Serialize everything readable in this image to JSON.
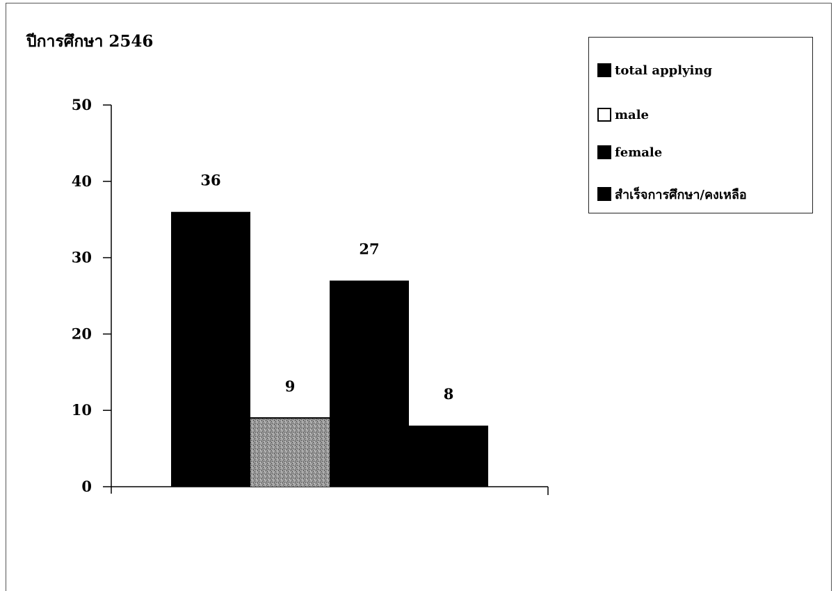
{
  "chart_data": {
    "type": "bar",
    "title": "ปีการศึกษา 2546",
    "xlabel": "",
    "ylabel": "",
    "ylim": [
      0,
      50
    ],
    "yticks": [
      0,
      10,
      20,
      30,
      40,
      50
    ],
    "grid": false,
    "legend_position": "top-right",
    "series": [
      {
        "name": "total applying",
        "value": 36,
        "label": "36",
        "fill": "solid-black"
      },
      {
        "name": "male",
        "value": 9,
        "label": "9",
        "fill": "gray-speckled"
      },
      {
        "name": "female",
        "value": 27,
        "label": "27",
        "fill": "solid-black"
      },
      {
        "name": "สำเร็จการศึกษา/คงเหลือ",
        "value": 8,
        "label": "8",
        "fill": "solid-black"
      }
    ]
  },
  "legend": [
    {
      "label": "total applying",
      "swatch": "filled"
    },
    {
      "label": "male",
      "swatch": "hollow"
    },
    {
      "label": "female",
      "swatch": "filled"
    },
    {
      "label": "สำเร็จการศึกษา/คงเหลือ",
      "swatch": "filled"
    }
  ],
  "colors": {
    "bar": "#000000",
    "male_bar": "#8f8f8f",
    "axis": "#000000"
  }
}
